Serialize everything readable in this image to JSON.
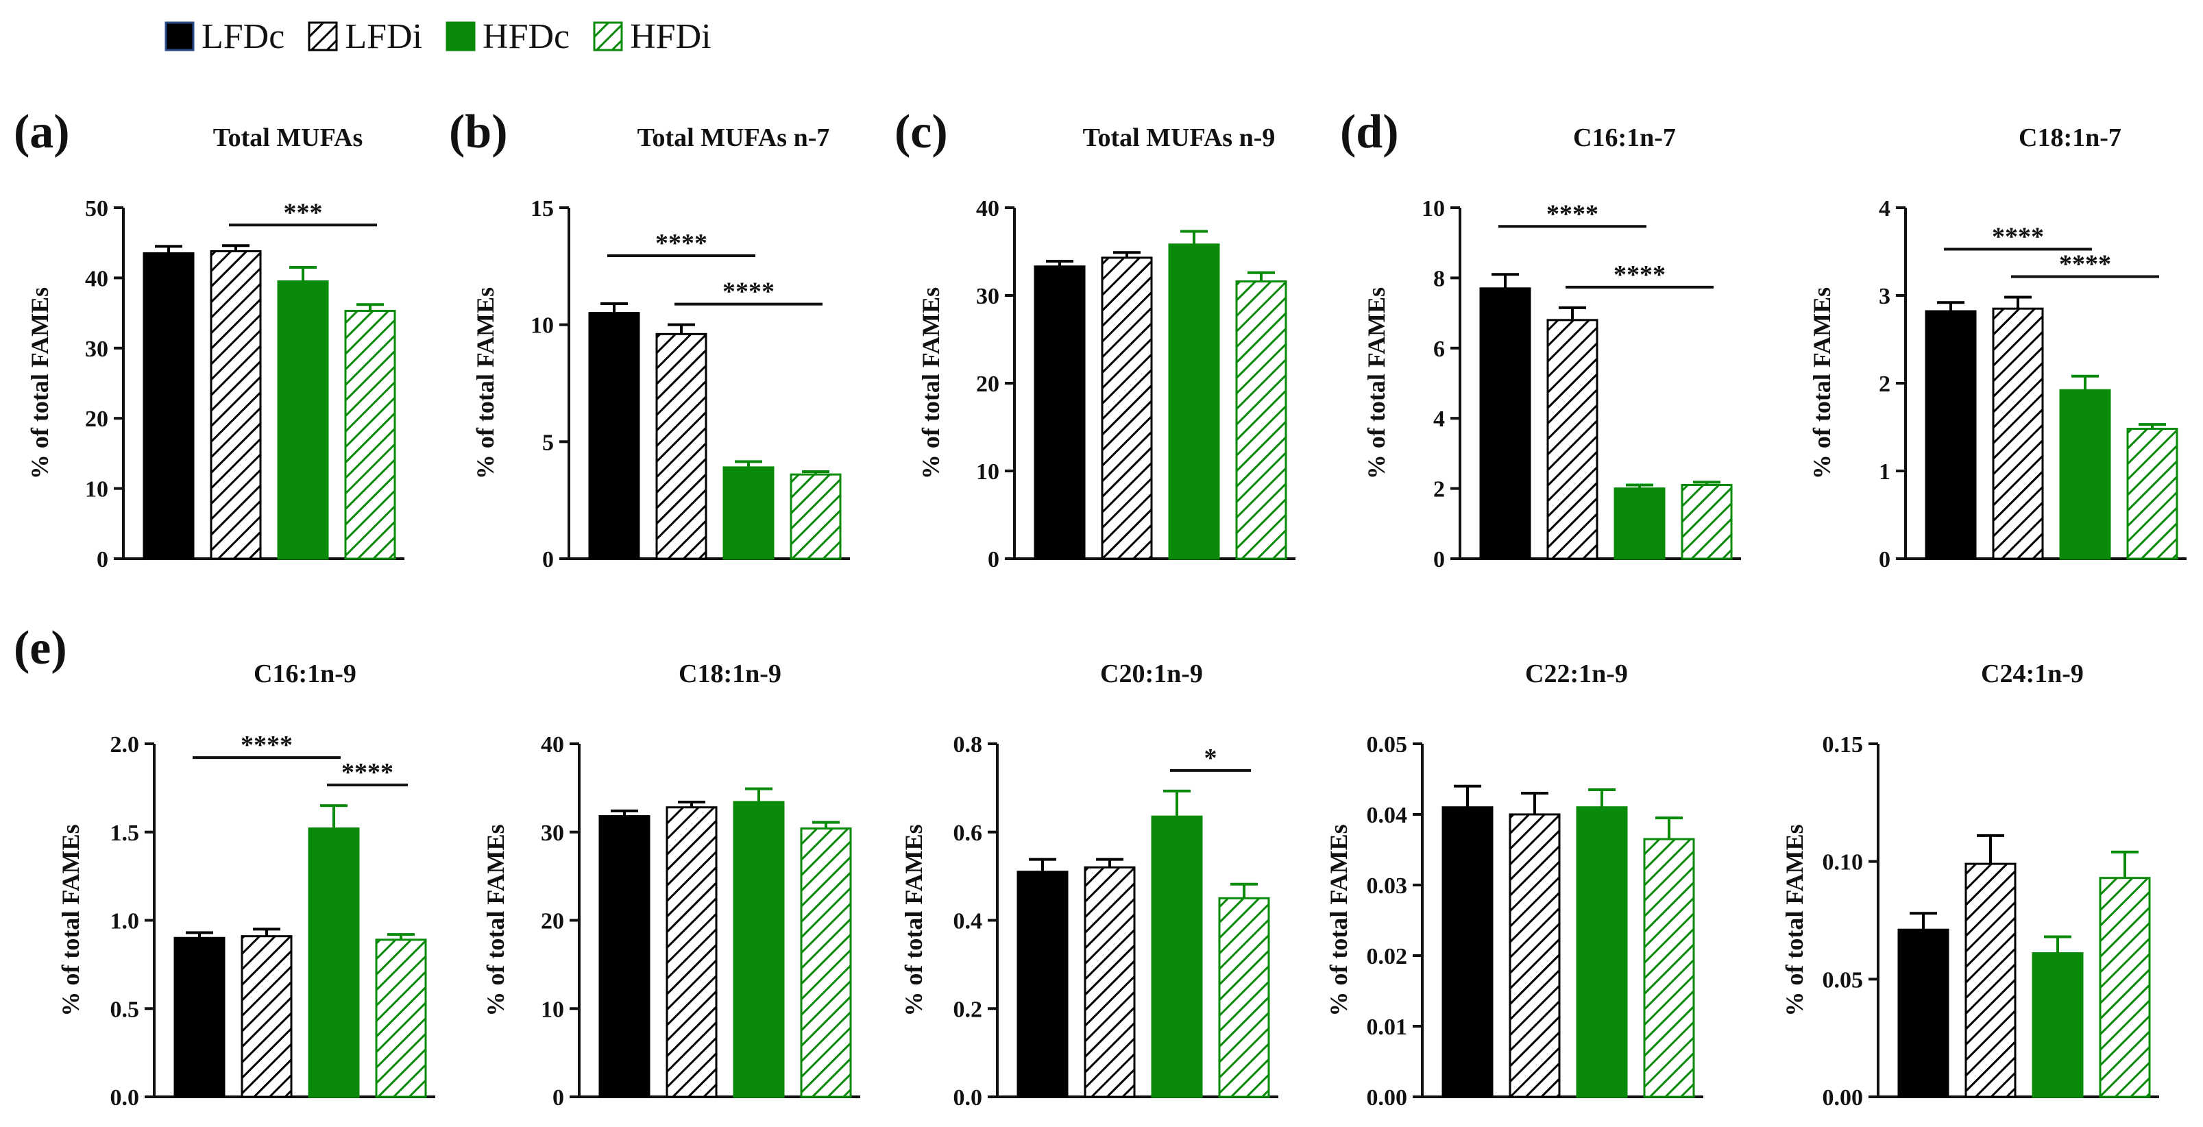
{
  "legend": [
    {
      "label": "LFDc",
      "style": "solid-black"
    },
    {
      "label": "LFDi",
      "style": "hatch-black"
    },
    {
      "label": "HFDc",
      "style": "solid-green"
    },
    {
      "label": "HFDi",
      "style": "hatch-green"
    }
  ],
  "colors": {
    "black": "#000000",
    "green": "#0a8a0a",
    "axis": "#111111"
  },
  "panel_labels": [
    "(a)",
    "(b)",
    "(c)",
    "(d)",
    "(e)"
  ],
  "chart_data": [
    {
      "type": "bar",
      "panel_label": "(a)",
      "title": "Total MUFAs",
      "ylabel": "% of total FAMEs",
      "categories": [
        "LFDc",
        "LFDi",
        "HFDc",
        "HFDi"
      ],
      "values": [
        43.5,
        43.8,
        39.5,
        35.3
      ],
      "errors": [
        1.0,
        0.8,
        2.0,
        0.9
      ],
      "ylim": [
        0,
        50
      ],
      "ticks": [
        "0",
        "10",
        "20",
        "30",
        "40",
        "50"
      ],
      "significance": [
        {
          "from": 1,
          "to": 3,
          "label": "***"
        }
      ]
    },
    {
      "type": "bar",
      "panel_label": "(b)",
      "title": "Total MUFAs n-7",
      "ylabel": "% of total FAMEs",
      "categories": [
        "LFDc",
        "LFDi",
        "HFDc",
        "HFDi"
      ],
      "values": [
        10.5,
        9.6,
        3.9,
        3.6
      ],
      "errors": [
        0.4,
        0.4,
        0.25,
        0.12
      ],
      "ylim": [
        0,
        15
      ],
      "ticks": [
        "0",
        "5",
        "10",
        "15"
      ],
      "significance": [
        {
          "from": 0,
          "to": 2,
          "label": "****"
        },
        {
          "from": 1,
          "to": 3,
          "label": "****"
        }
      ]
    },
    {
      "type": "bar",
      "panel_label": "(c)",
      "title": "Total MUFAs n-9",
      "ylabel": "% of total FAMEs",
      "categories": [
        "LFDc",
        "LFDi",
        "HFDc",
        "HFDi"
      ],
      "values": [
        33.3,
        34.3,
        35.8,
        31.6
      ],
      "errors": [
        0.6,
        0.6,
        1.5,
        1.0
      ],
      "ylim": [
        0,
        40
      ],
      "ticks": [
        "0",
        "10",
        "20",
        "30",
        "40"
      ],
      "significance": []
    },
    {
      "type": "bar",
      "panel_label": "(d)",
      "title": "C16:1n-7",
      "ylabel": "% of total FAMEs",
      "categories": [
        "LFDc",
        "LFDi",
        "HFDc",
        "HFDi"
      ],
      "values": [
        7.7,
        6.8,
        2.0,
        2.1
      ],
      "errors": [
        0.4,
        0.35,
        0.1,
        0.08
      ],
      "ylim": [
        0,
        10
      ],
      "ticks": [
        "0",
        "2",
        "4",
        "6",
        "8",
        "10"
      ],
      "significance": [
        {
          "from": 0,
          "to": 2,
          "label": "****"
        },
        {
          "from": 1,
          "to": 3,
          "label": "****"
        }
      ]
    },
    {
      "type": "bar",
      "panel_label": "",
      "title": "C18:1n-7",
      "ylabel": "% of total FAMEs",
      "categories": [
        "LFDc",
        "LFDi",
        "HFDc",
        "HFDi"
      ],
      "values": [
        2.82,
        2.85,
        1.92,
        1.48
      ],
      "errors": [
        0.1,
        0.13,
        0.16,
        0.05
      ],
      "ylim": [
        0,
        4
      ],
      "ticks": [
        "0",
        "1",
        "2",
        "3",
        "4"
      ],
      "significance": [
        {
          "from": 0,
          "to": 2,
          "label": "****"
        },
        {
          "from": 1,
          "to": 3,
          "label": "****"
        }
      ]
    },
    {
      "type": "bar",
      "panel_label": "(e)",
      "title": "C16:1n-9",
      "ylabel": "% of total FAMEs",
      "categories": [
        "LFDc",
        "LFDi",
        "HFDc",
        "HFDi"
      ],
      "values": [
        0.9,
        0.91,
        1.52,
        0.89
      ],
      "errors": [
        0.03,
        0.04,
        0.13,
        0.03
      ],
      "ylim": [
        0,
        2
      ],
      "ticks": [
        "0.0",
        "0.5",
        "1.0",
        "1.5",
        "2.0"
      ],
      "significance": [
        {
          "from": 0,
          "to": 2,
          "label": "****"
        },
        {
          "from": 2,
          "to": 3,
          "label": "****"
        }
      ]
    },
    {
      "type": "bar",
      "panel_label": "",
      "title": "C18:1n-9",
      "ylabel": "% of total FAMEs",
      "categories": [
        "LFDc",
        "LFDi",
        "HFDc",
        "HFDi"
      ],
      "values": [
        31.8,
        32.8,
        33.4,
        30.4
      ],
      "errors": [
        0.6,
        0.6,
        1.5,
        0.7
      ],
      "ylim": [
        0,
        40
      ],
      "ticks": [
        "0",
        "10",
        "20",
        "30",
        "40"
      ],
      "significance": []
    },
    {
      "type": "bar",
      "panel_label": "",
      "title": "C20:1n-9",
      "ylabel": "% of total FAMEs",
      "categories": [
        "LFDc",
        "LFDi",
        "HFDc",
        "HFDi"
      ],
      "values": [
        0.51,
        0.52,
        0.635,
        0.45
      ],
      "errors": [
        0.028,
        0.018,
        0.058,
        0.032
      ],
      "ylim": [
        0,
        0.8
      ],
      "ticks": [
        "0.0",
        "0.2",
        "0.4",
        "0.6",
        "0.8"
      ],
      "significance": [
        {
          "from": 2,
          "to": 3,
          "label": "*"
        }
      ]
    },
    {
      "type": "bar",
      "panel_label": "",
      "title": "C22:1n-9",
      "ylabel": "% of total FAMEs",
      "categories": [
        "LFDc",
        "LFDi",
        "HFDc",
        "HFDi"
      ],
      "values": [
        0.041,
        0.04,
        0.041,
        0.0365
      ],
      "errors": [
        0.003,
        0.003,
        0.0025,
        0.003
      ],
      "ylim": [
        0,
        0.05
      ],
      "ticks": [
        "0.00",
        "0.01",
        "0.02",
        "0.03",
        "0.04",
        "0.05"
      ],
      "significance": []
    },
    {
      "type": "bar",
      "panel_label": "",
      "title": "C24:1n-9",
      "ylabel": "% of total FAMEs",
      "categories": [
        "LFDc",
        "LFDi",
        "HFDc",
        "HFDi"
      ],
      "values": [
        0.071,
        0.099,
        0.061,
        0.093
      ],
      "errors": [
        0.007,
        0.012,
        0.007,
        0.011
      ],
      "ylim": [
        0,
        0.15
      ],
      "ticks": [
        "0.00",
        "0.05",
        "0.10",
        "0.15"
      ],
      "significance": []
    }
  ]
}
